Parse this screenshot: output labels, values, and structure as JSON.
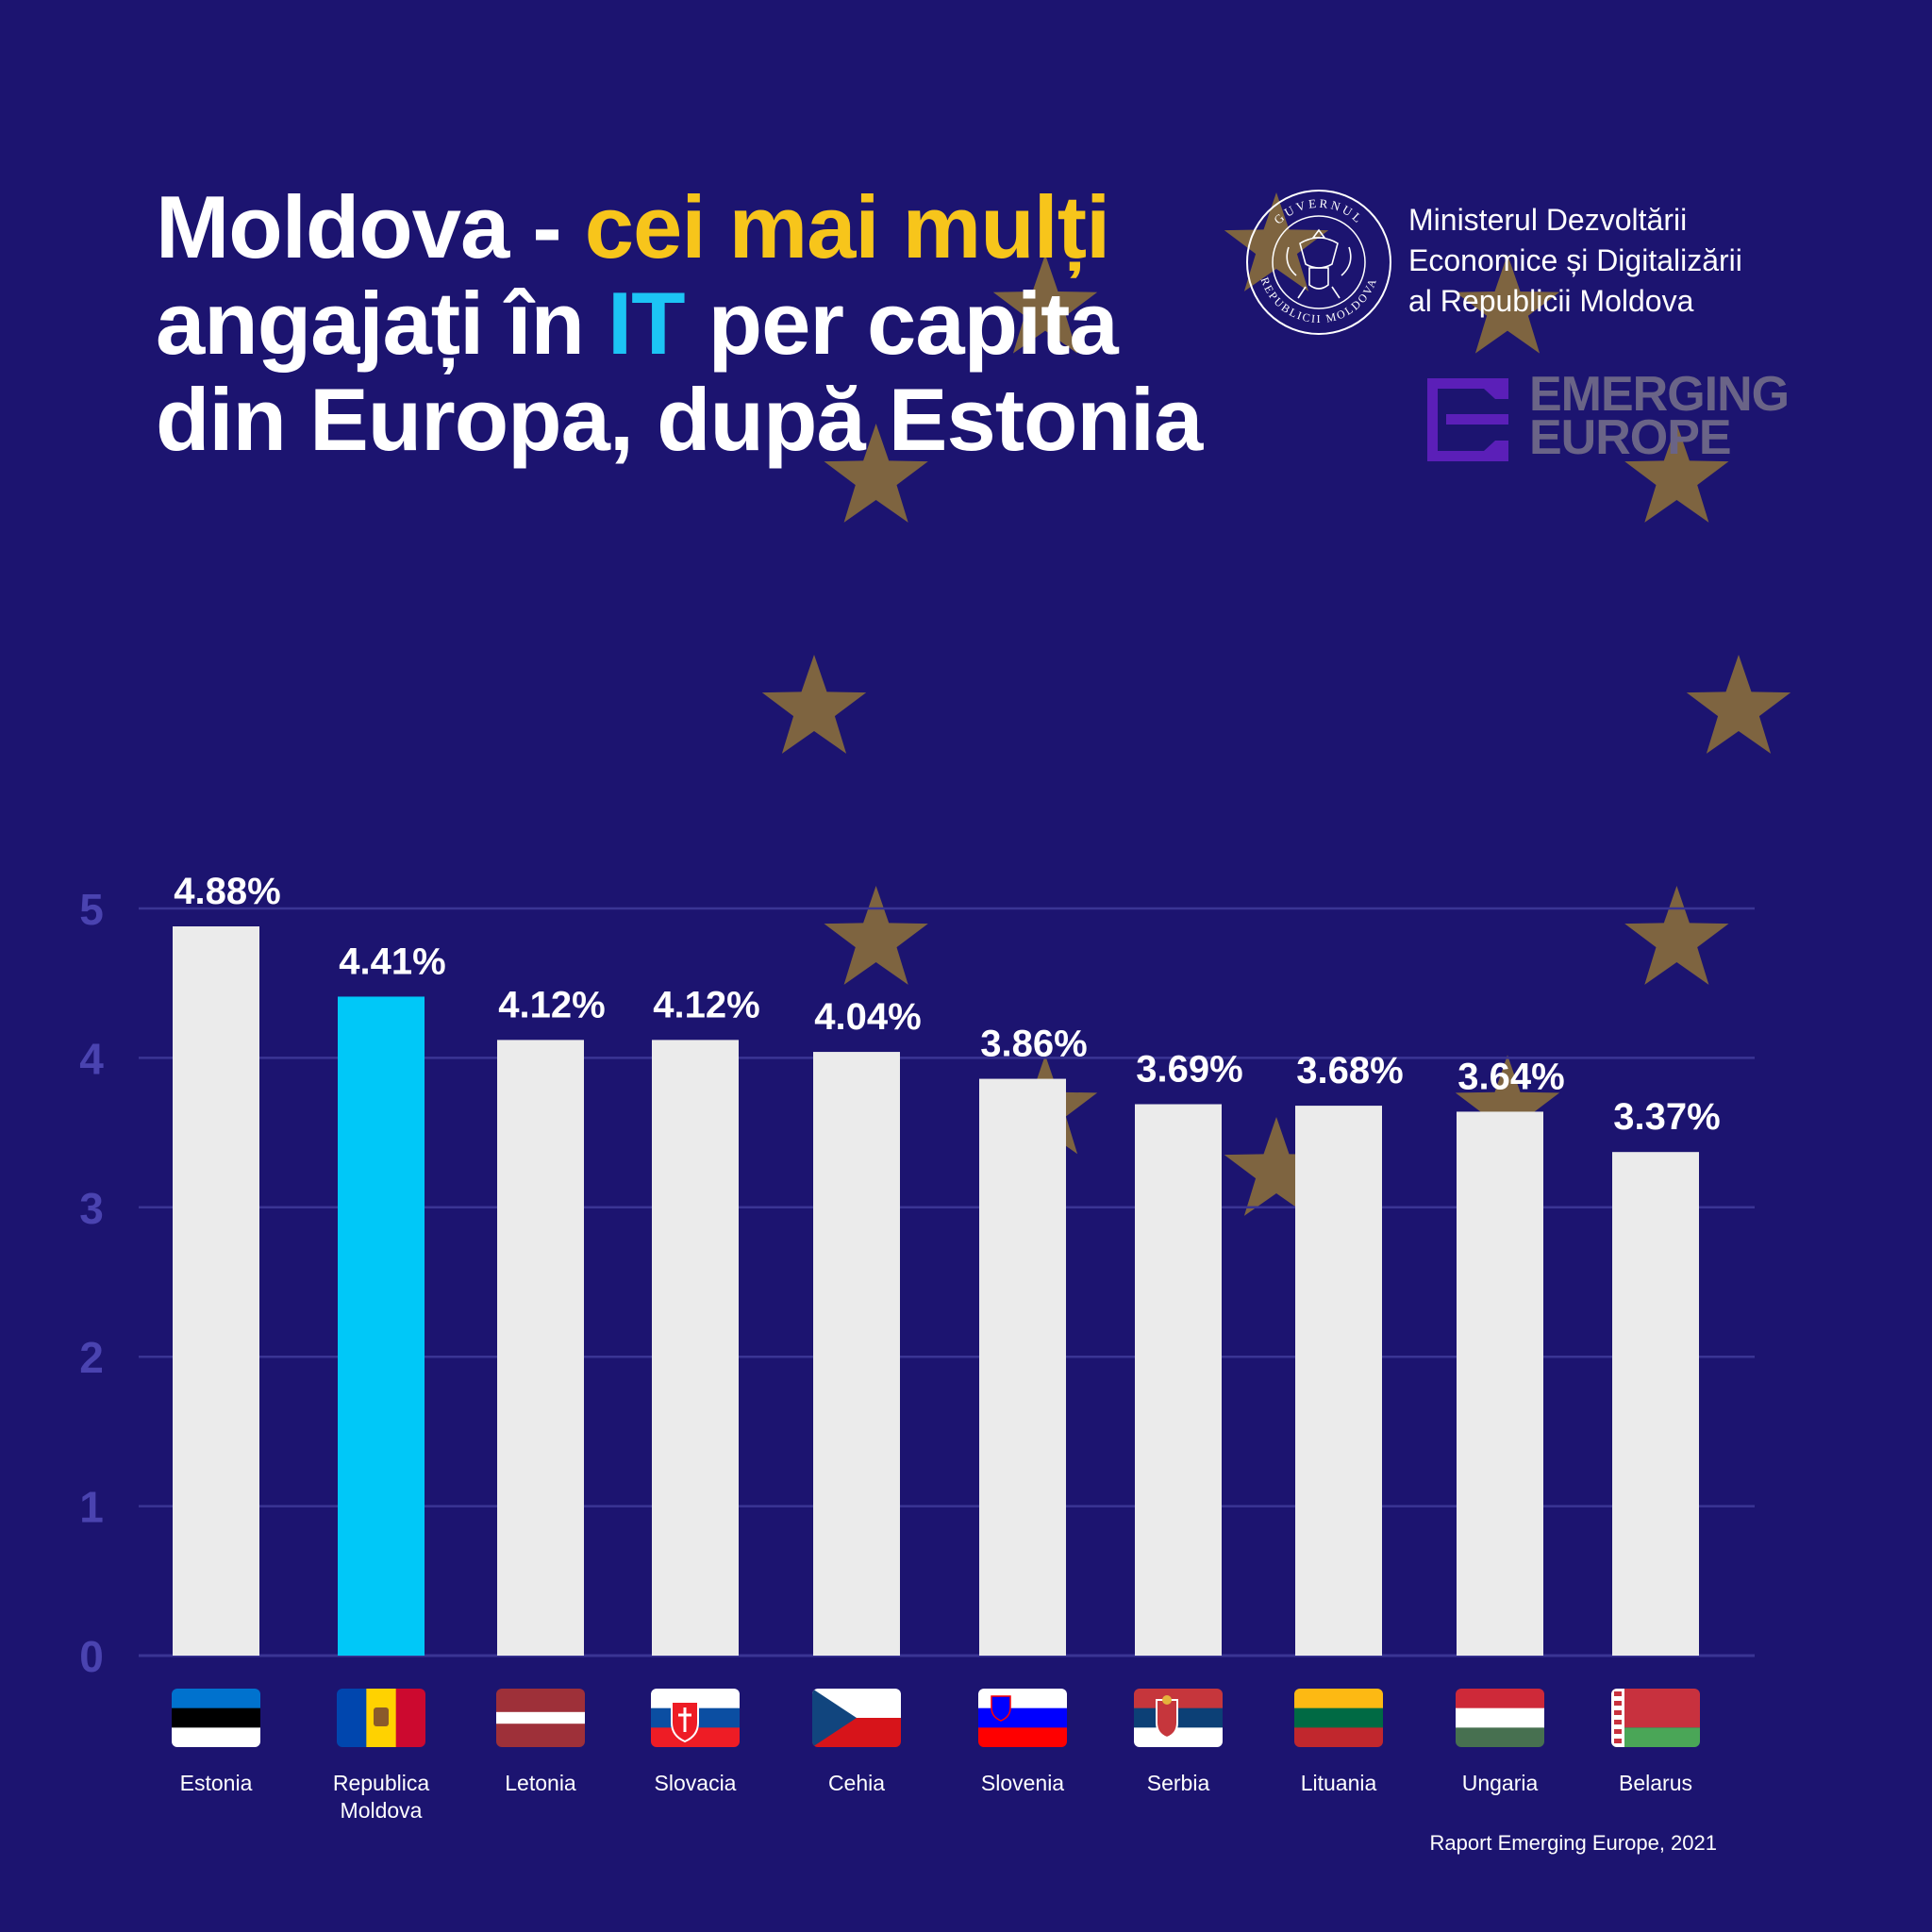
{
  "title": {
    "part1": "Moldova - ",
    "part2": "cei mai mulți",
    "part3": "angajați în ",
    "part4": "IT",
    "part5": " per capita",
    "part6": "din Europa, după Estonia"
  },
  "ministry": {
    "seal_icon": "government-seal-icon",
    "seal_text_top": "GUVERNUL",
    "seal_text_bottom": "REPUBLICII MOLDOVA",
    "line1": "Ministerul Dezvoltării",
    "line2": "Economice și Digitalizării",
    "line3": "al Republicii Moldova"
  },
  "logo": {
    "icon": "emerging-europe-logo-icon",
    "line1": "EMERGING",
    "line2": "EUROPE"
  },
  "source": "Raport Emerging Europe, 2021",
  "colors": {
    "background": "#1c1470",
    "bar": "#ebebeb",
    "highlight_bar": "#00c8f8",
    "star": "#7e6440",
    "accent_yellow": "#f7c51b",
    "accent_cyan": "#1cc4f5",
    "tick": "#4a43b0"
  },
  "chart_data": {
    "type": "bar",
    "categories": [
      "Estonia",
      "Republica Moldova",
      "Letonia",
      "Slovacia",
      "Cehia",
      "Slovenia",
      "Serbia",
      "Lituania",
      "Ungaria",
      "Belarus"
    ],
    "category_lines": [
      [
        "Estonia"
      ],
      [
        "Republica",
        "Moldova"
      ],
      [
        "Letonia"
      ],
      [
        "Slovacia"
      ],
      [
        "Cehia"
      ],
      [
        "Slovenia"
      ],
      [
        "Serbia"
      ],
      [
        "Lituania"
      ],
      [
        "Ungaria"
      ],
      [
        "Belarus"
      ]
    ],
    "values": [
      4.88,
      4.41,
      4.12,
      4.12,
      4.04,
      3.86,
      3.69,
      3.68,
      3.64,
      3.37
    ],
    "labels": [
      "4.88%",
      "4.41%",
      "4.12%",
      "4.12%",
      "4.04%",
      "3.86%",
      "3.69%",
      "3.68%",
      "3.64%",
      "3.37%"
    ],
    "highlight": "Republica Moldova",
    "ylim": [
      0,
      5
    ],
    "yticks": [
      0,
      1,
      2,
      3,
      4,
      5
    ],
    "grid": true,
    "flags": [
      "estonia-flag-icon",
      "moldova-flag-icon",
      "latvia-flag-icon",
      "slovakia-flag-icon",
      "czechia-flag-icon",
      "slovenia-flag-icon",
      "serbia-flag-icon",
      "lithuania-flag-icon",
      "hungary-flag-icon",
      "belarus-flag-icon"
    ],
    "title": "",
    "xlabel": "",
    "ylabel": ""
  }
}
